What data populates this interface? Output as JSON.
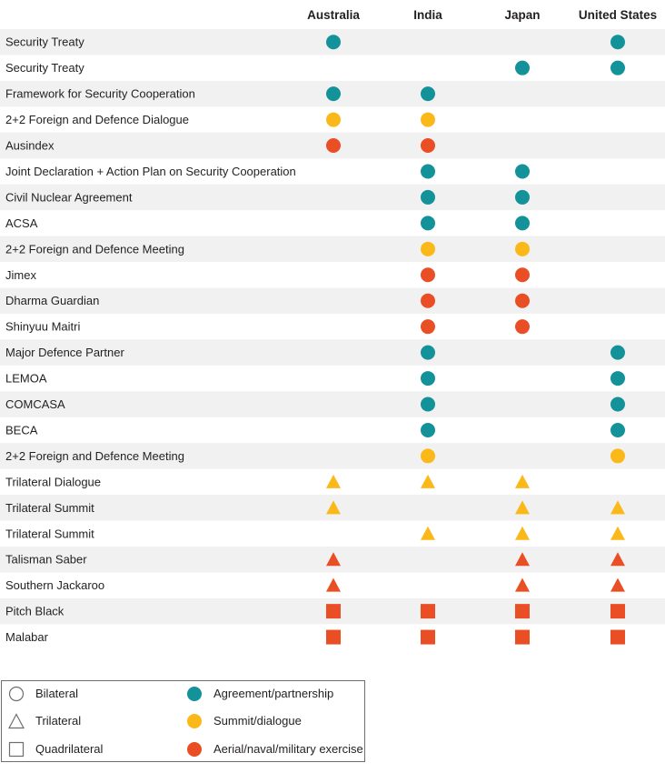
{
  "chart_data": {
    "type": "table",
    "columns": [
      "Australia",
      "India",
      "Japan",
      "United States"
    ],
    "rows": [
      {
        "label": "Security Treaty",
        "marks": {
          "Australia": "agreement",
          "United States": "agreement"
        },
        "shape": "circle"
      },
      {
        "label": "Security Treaty",
        "marks": {
          "Japan": "agreement",
          "United States": "agreement"
        },
        "shape": "circle"
      },
      {
        "label": "Framework for Security Cooperation",
        "marks": {
          "Australia": "agreement",
          "India": "agreement"
        },
        "shape": "circle"
      },
      {
        "label": "2+2 Foreign and Defence Dialogue",
        "marks": {
          "Australia": "summit",
          "India": "summit"
        },
        "shape": "circle"
      },
      {
        "label": "Ausindex",
        "marks": {
          "Australia": "exercise",
          "India": "exercise"
        },
        "shape": "circle"
      },
      {
        "label": "Joint Declaration + Action Plan on Security Cooperation",
        "marks": {
          "India": "agreement",
          "Japan": "agreement"
        },
        "shape": "circle"
      },
      {
        "label": "Civil Nuclear Agreement",
        "marks": {
          "India": "agreement",
          "Japan": "agreement"
        },
        "shape": "circle"
      },
      {
        "label": "ACSA",
        "marks": {
          "India": "agreement",
          "Japan": "agreement"
        },
        "shape": "circle"
      },
      {
        "label": "2+2 Foreign and Defence Meeting",
        "marks": {
          "India": "summit",
          "Japan": "summit"
        },
        "shape": "circle"
      },
      {
        "label": "Jimex",
        "marks": {
          "India": "exercise",
          "Japan": "exercise"
        },
        "shape": "circle"
      },
      {
        "label": "Dharma Guardian",
        "marks": {
          "India": "exercise",
          "Japan": "exercise"
        },
        "shape": "circle"
      },
      {
        "label": "Shinyuu Maitri",
        "marks": {
          "India": "exercise",
          "Japan": "exercise"
        },
        "shape": "circle"
      },
      {
        "label": "Major Defence Partner",
        "marks": {
          "India": "agreement",
          "United States": "agreement"
        },
        "shape": "circle"
      },
      {
        "label": "LEMOA",
        "marks": {
          "India": "agreement",
          "United States": "agreement"
        },
        "shape": "circle"
      },
      {
        "label": "COMCASA",
        "marks": {
          "India": "agreement",
          "United States": "agreement"
        },
        "shape": "circle"
      },
      {
        "label": "BECA",
        "marks": {
          "India": "agreement",
          "United States": "agreement"
        },
        "shape": "circle"
      },
      {
        "label": "2+2 Foreign and Defence Meeting",
        "marks": {
          "India": "summit",
          "United States": "summit"
        },
        "shape": "circle"
      },
      {
        "label": "Trilateral Dialogue",
        "marks": {
          "Australia": "summit",
          "India": "summit",
          "Japan": "summit"
        },
        "shape": "triangle"
      },
      {
        "label": "Trilateral Summit",
        "marks": {
          "Australia": "summit",
          "Japan": "summit",
          "United States": "summit"
        },
        "shape": "triangle"
      },
      {
        "label": "Trilateral Summit",
        "marks": {
          "India": "summit",
          "Japan": "summit",
          "United States": "summit"
        },
        "shape": "triangle"
      },
      {
        "label": "Talisman Saber",
        "marks": {
          "Australia": "exercise",
          "Japan": "exercise",
          "United States": "exercise"
        },
        "shape": "triangle"
      },
      {
        "label": "Southern Jackaroo",
        "marks": {
          "Australia": "exercise",
          "Japan": "exercise",
          "United States": "exercise"
        },
        "shape": "triangle"
      },
      {
        "label": "Pitch Black",
        "marks": {
          "Australia": "exercise",
          "India": "exercise",
          "Japan": "exercise",
          "United States": "exercise"
        },
        "shape": "square"
      },
      {
        "label": "Malabar",
        "marks": {
          "Australia": "exercise",
          "India": "exercise",
          "Japan": "exercise",
          "United States": "exercise"
        },
        "shape": "square"
      }
    ],
    "categories": {
      "agreement": {
        "label": "Agreement/partnership",
        "color": "#13929a"
      },
      "summit": {
        "label": "Summit/dialogue",
        "color": "#fbb819"
      },
      "exercise": {
        "label": "Aerial/naval/military exercise",
        "color": "#e94e24"
      }
    },
    "shapes": {
      "circle": {
        "label": "Bilateral"
      },
      "triangle": {
        "label": "Trilateral"
      },
      "square": {
        "label": "Quadrilateral"
      }
    },
    "stripe_color": "#f1f1f2",
    "legend_placement": "bottom-left"
  },
  "legend": {
    "bilateral": "Bilateral",
    "trilateral": "Trilateral",
    "quadrilateral": "Quadrilateral",
    "agreement": "Agreement/partnership",
    "summit": "Summit/dialogue",
    "exercise": "Aerial/naval/military exercise"
  }
}
